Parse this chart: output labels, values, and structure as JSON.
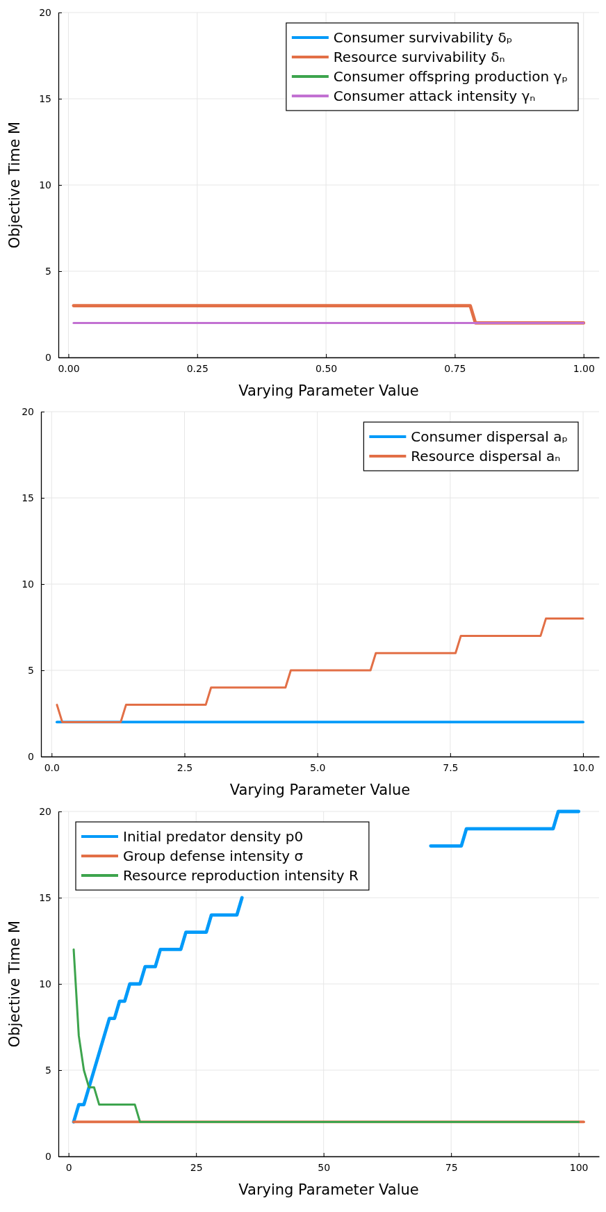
{
  "chart_data": [
    {
      "type": "line",
      "xlabel": "Varying Parameter Value",
      "ylabel": "Objective Time M",
      "xlim": [
        -0.0195,
        1.03
      ],
      "ylim": [
        0,
        20
      ],
      "xticks": [
        {
          "value": 0,
          "label": "0.00"
        },
        {
          "value": 0.25,
          "label": "0.25"
        },
        {
          "value": 0.5,
          "label": "0.50"
        },
        {
          "value": 0.75,
          "label": "0.75"
        },
        {
          "value": 1,
          "label": "1.00"
        }
      ],
      "yticks": [
        0,
        5,
        10,
        15,
        20
      ],
      "grid": true,
      "legend": "top right",
      "series": [
        {
          "name": "Consumer survivability δₚ",
          "color": "#009af9"
        },
        {
          "name": "Resource survivability δₙ",
          "color": "#e26f46",
          "x": [
            0.01,
            0.78,
            0.79,
            1
          ],
          "values": [
            3,
            3,
            2,
            2
          ]
        },
        {
          "name": "Consumer offspring production γₚ",
          "color": "#3da44d"
        },
        {
          "name": "Consumer attack intensity γₙ",
          "color": "#c271d2",
          "x": [
            0.01,
            1
          ],
          "values": [
            2,
            2
          ]
        }
      ]
    },
    {
      "type": "line",
      "xlabel": "Varying Parameter Value",
      "xlim": [
        -0.2,
        10.3
      ],
      "ylim": [
        0,
        20
      ],
      "xticks": [
        {
          "value": 0,
          "label": "0.0"
        },
        {
          "value": 2.5,
          "label": "2.5"
        },
        {
          "value": 5,
          "label": "5.0"
        },
        {
          "value": 7.5,
          "label": "7.5"
        },
        {
          "value": 10,
          "label": "10.0"
        }
      ],
      "yticks": [
        0,
        5,
        10,
        15,
        20
      ],
      "grid": true,
      "legend": "top right",
      "series": [
        {
          "name": "Consumer dispersal aₚ",
          "color": "#009af9",
          "x": [
            0.1,
            10
          ],
          "values": [
            2,
            2
          ]
        },
        {
          "name": "Resource dispersal aₙ",
          "color": "#e26f46",
          "x": [
            0.1,
            0.2,
            1.3,
            1.4,
            2.9,
            3.0,
            4.4,
            4.5,
            6.0,
            6.1,
            7.6,
            7.7,
            9.2,
            9.3,
            10
          ],
          "values": [
            3,
            2,
            2,
            3,
            3,
            4,
            4,
            5,
            5,
            6,
            6,
            7,
            7,
            8,
            8
          ]
        }
      ]
    },
    {
      "type": "line",
      "xlabel": "Varying Parameter Value",
      "ylabel": "Objective Time M",
      "xlim": [
        -2,
        104
      ],
      "ylim": [
        0,
        20
      ],
      "xticks": [
        0,
        25,
        50,
        75,
        100
      ],
      "yticks": [
        0,
        5,
        10,
        15,
        20
      ],
      "grid": true,
      "legend": "top left",
      "series": [
        {
          "name": "Initial predator density p0",
          "color": "#009af9",
          "x": [
            1,
            2,
            3,
            8,
            9,
            10,
            11,
            12,
            14,
            15,
            17,
            18,
            22,
            23,
            27,
            28,
            33,
            34,
            35,
            70,
            71,
            77,
            78,
            95,
            96,
            100
          ],
          "values": [
            2,
            3,
            3,
            8,
            8,
            9,
            9,
            10,
            10,
            11,
            11,
            12,
            12,
            13,
            13,
            14,
            14,
            15,
            null,
            null,
            18,
            18,
            19,
            19,
            20,
            20
          ]
        },
        {
          "name": "Group defense intensity σ",
          "color": "#e26f46",
          "x": [
            1,
            101
          ],
          "values": [
            2,
            2
          ]
        },
        {
          "name": "Resource reproduction intensity R",
          "color": "#3da44d",
          "x": [
            1,
            2,
            3,
            4,
            5,
            6,
            13,
            14,
            100
          ],
          "values": [
            12,
            7,
            5,
            4,
            4,
            3,
            3,
            2,
            2
          ]
        }
      ]
    }
  ]
}
